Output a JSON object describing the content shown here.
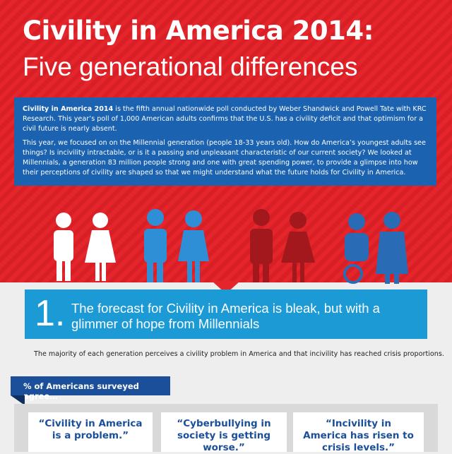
{
  "header": {
    "title": "Civility in America 2014:",
    "subtitle": "Five generational differences"
  },
  "intro": {
    "lead": "Civility in America 2014",
    "lead_rest": " is the fifth annual nationwide poll conducted by Weber Shandwick and Powell Tate with KRC Research. This year’s poll of 1,000 American adults confirms that the U.S. has a civility deficit and that optimism for a civil future is nearly absent.",
    "paragraph": "This year, we focused on on the Millennial generation (people 18-33 years old). How do America’s youngest adults see things? Is incivility intractable, or is it a passing and unpleasant characteristic of our current society? We looked at Millennials, a generation 83 million people strong and one with great spending power, to provide a glimpse into how their perceptions of civility are shaped so that we might understand what the future holds for Civility in America."
  },
  "section": {
    "number": "1.",
    "heading": "The forecast for Civility in America is bleak, but with a glimmer of hope from Millennials",
    "description": "The majority of each generation perceives a civility problem in America and that incivility has reached crisis proportions.",
    "tag": "% of Americans surveyed agree…",
    "cards": [
      "“Civility in America is a problem.”",
      "“Cyberbullying in society is getting worse.”",
      "“Incivility in America has risen to crisis levels.”"
    ]
  }
}
